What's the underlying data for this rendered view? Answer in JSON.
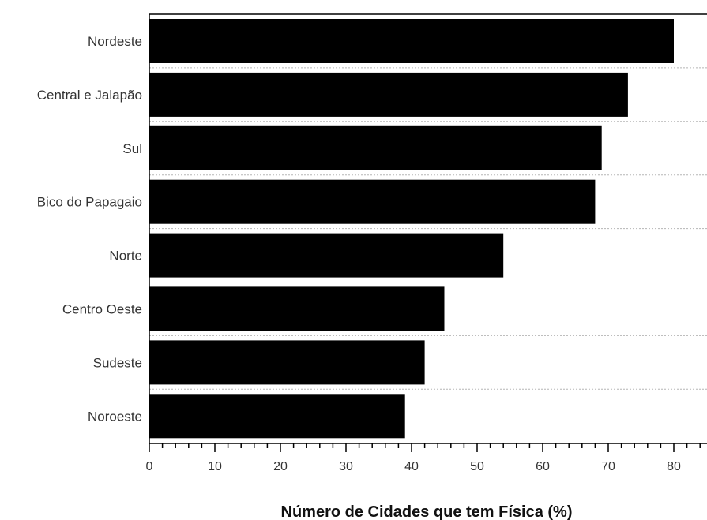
{
  "chart_data": {
    "type": "bar",
    "orientation": "horizontal",
    "categories": [
      "Nordeste",
      "Central e Jalapão",
      "Sul",
      "Bico do Papagaio",
      "Norte",
      "Centro Oeste",
      "Sudeste",
      "Noroeste"
    ],
    "values": [
      80,
      73,
      69,
      68,
      54,
      45,
      42,
      39
    ],
    "title": "",
    "xlabel": "Número de Cidades que tem Física (%)",
    "ylabel": "",
    "xlim": [
      0,
      85
    ],
    "xticks": [
      0,
      10,
      20,
      30,
      40,
      50,
      60,
      70,
      80
    ],
    "grid": true,
    "colors": {
      "bar": "#000000"
    }
  }
}
